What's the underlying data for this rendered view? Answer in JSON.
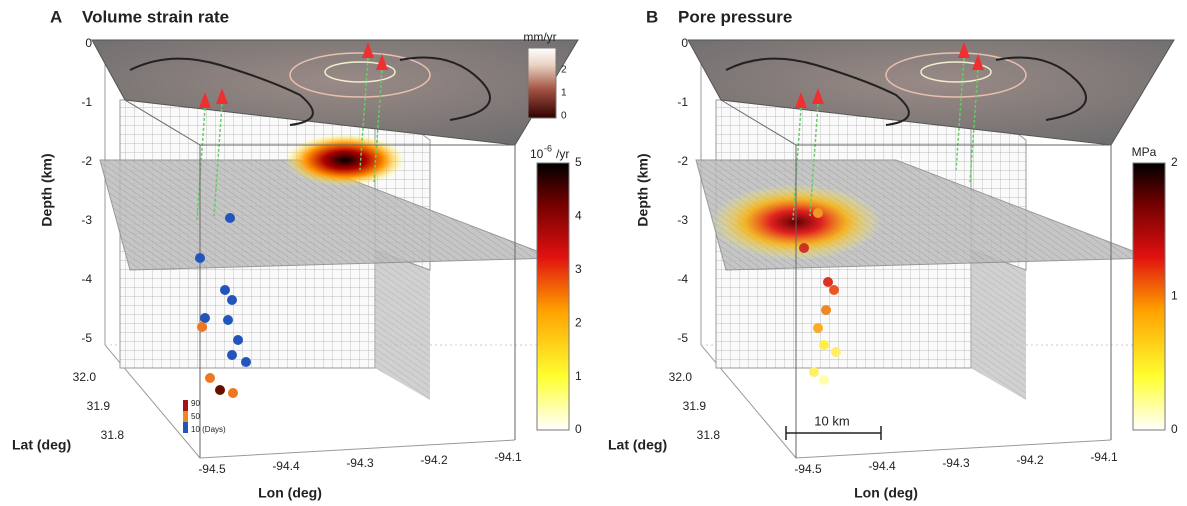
{
  "panels": [
    {
      "letter": "A",
      "title": "Volume strain rate",
      "depth_label": "Depth (km)",
      "depth_ticks": [
        "0",
        "-1",
        "-2",
        "-3",
        "-4",
        "-5"
      ],
      "lat_label": "Lat (deg)",
      "lat_ticks": [
        "32.0",
        "31.9",
        "31.8"
      ],
      "lon_label": "Lon (deg)",
      "lon_ticks": [
        "-94.5",
        "-94.4",
        "-94.3",
        "-94.2",
        "-94.1"
      ],
      "top_colorbar": {
        "unit": "mm/yr",
        "ticks": [
          "2",
          "1",
          "0"
        ]
      },
      "colorbar": {
        "unit": {
          "base": "10",
          "exponent": "-6",
          "suffix": "/yr"
        },
        "ticks": [
          "5",
          "4",
          "3",
          "2",
          "1",
          "0"
        ]
      },
      "time_legend": [
        "90",
        "50",
        "10 (Days)"
      ]
    },
    {
      "letter": "B",
      "title": "Pore pressure",
      "depth_label": "Depth (km)",
      "depth_ticks": [
        "0",
        "-1",
        "-2",
        "-3",
        "-4",
        "-5"
      ],
      "lat_label": "Lat (deg)",
      "lat_ticks": [
        "32.0",
        "31.9",
        "31.8"
      ],
      "lon_label": "Lon (deg)",
      "lon_ticks": [
        "-94.5",
        "-94.4",
        "-94.3",
        "-94.2",
        "-94.1"
      ],
      "colorbar": {
        "unit": "MPa",
        "ticks": [
          "2",
          "1",
          "0"
        ]
      },
      "scale_bar": "10 km"
    }
  ]
}
